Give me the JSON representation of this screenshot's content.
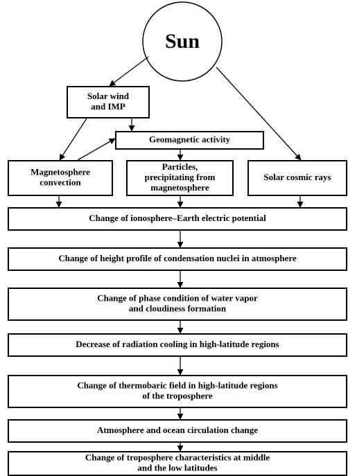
{
  "nodes": [
    {
      "lines": [
        "Sun"
      ]
    },
    {
      "lines": [
        "Solar wind",
        "and IMP"
      ]
    },
    {
      "lines": [
        "Geomagnetic activity"
      ]
    },
    {
      "lines": [
        "Magnetosphere",
        "convection"
      ]
    },
    {
      "lines": [
        "Particles,",
        "precipitating from",
        "magnetosphere"
      ]
    },
    {
      "lines": [
        "Solar cosmic rays"
      ]
    },
    {
      "lines": [
        "Change of ionosphere–Earth electric potential"
      ]
    },
    {
      "lines": [
        "Change of height profile of condensation nuclei in atmosphere"
      ]
    },
    {
      "lines": [
        "Change of phase condition of water vapor",
        "and cloudiness formation"
      ]
    },
    {
      "lines": [
        "Decrease of radiation cooling in high-latitude regions"
      ]
    },
    {
      "lines": [
        "Change of thermobaric field in high-latitude regions",
        "of the troposphere"
      ]
    },
    {
      "lines": [
        "Atmosphere and ocean circulation change"
      ]
    },
    {
      "lines": [
        "Change of troposphere characteristics at middle",
        "and the low latitudes"
      ]
    }
  ]
}
